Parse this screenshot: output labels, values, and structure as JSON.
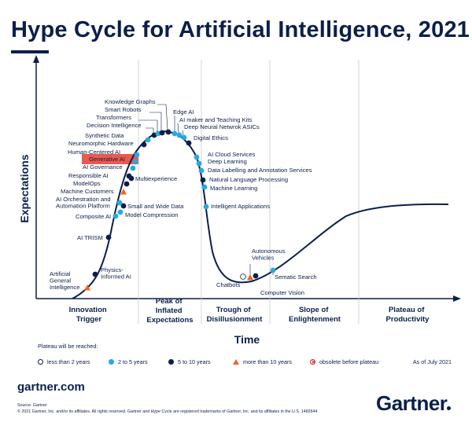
{
  "title": "Hype Cycle for Artificial Intelligence, 2021",
  "axes": {
    "y_label": "Expectations",
    "x_label": "Time"
  },
  "phases": [
    {
      "id": "innovation",
      "lines": [
        "Innovation",
        "Trigger"
      ]
    },
    {
      "id": "peak",
      "lines": [
        "Peak of",
        "Inflated",
        "Expectations"
      ]
    },
    {
      "id": "trough",
      "lines": [
        "Trough of",
        "Disillusionment"
      ]
    },
    {
      "id": "slope",
      "lines": [
        "Slope of",
        "Enlightenment"
      ]
    },
    {
      "id": "plateau",
      "lines": [
        "Plateau of",
        "Productivity"
      ]
    }
  ],
  "technologies": [
    {
      "name": "Artificial General Intelligence",
      "lines": [
        "Artificial",
        "General",
        "Intelligence"
      ],
      "category": "more than 10 years"
    },
    {
      "name": "Physics-Informed AI",
      "lines": [
        "Physics-",
        "Informed AI"
      ],
      "category": "5 to 10 years"
    },
    {
      "name": "AI TRISM",
      "lines": [
        "AI TRISM"
      ],
      "category": "5 to 10 years"
    },
    {
      "name": "Composite AI",
      "lines": [
        "Composite AI"
      ],
      "category": "2 to 5 years"
    },
    {
      "name": "Model Compression",
      "lines": [
        "Model Compression"
      ],
      "category": "2 to 5 years"
    },
    {
      "name": "Small and Wide Data",
      "lines": [
        "Small and Wide Data"
      ],
      "category": "5 to 10 years"
    },
    {
      "name": "AI Orchestration and Automation Platform",
      "lines": [
        "AI Orchestration and",
        "Automation Platform"
      ],
      "category": "2 to 5 years"
    },
    {
      "name": "Machine Customers",
      "lines": [
        "Machine Customers"
      ],
      "category": "more than 10 years"
    },
    {
      "name": "ModelOps",
      "lines": [
        "ModelOps"
      ],
      "category": "5 to 10 years"
    },
    {
      "name": "Multiexperience",
      "lines": [
        "Multiexperience"
      ],
      "category": "5 to 10 years"
    },
    {
      "name": "Responsible AI",
      "lines": [
        "Responsible AI"
      ],
      "category": "5 to 10 years"
    },
    {
      "name": "AI Governance",
      "lines": [
        "AI Governance"
      ],
      "category": "2 to 5 years"
    },
    {
      "name": "Generative AI",
      "lines": [
        "Generative AI"
      ],
      "category": "2 to 5 years"
    },
    {
      "name": "Human-Centered AI",
      "lines": [
        "Human-Centered AI"
      ],
      "category": "2 to 5 years"
    },
    {
      "name": "Neuromorphic Hardware",
      "lines": [
        "Neuromorphic Hardware"
      ],
      "category": "5 to 10 years"
    },
    {
      "name": "Synthetic Data",
      "lines": [
        "Synthetic Data"
      ],
      "category": "2 to 5 years"
    },
    {
      "name": "Decision Intelligence",
      "lines": [
        "Decision Intelligence"
      ],
      "category": "5 to 10 years"
    },
    {
      "name": "Transformers",
      "lines": [
        "Transformers"
      ],
      "category": "2 to 5 years"
    },
    {
      "name": "Smart Robots",
      "lines": [
        "Smart Robots"
      ],
      "category": "5 to 10 years"
    },
    {
      "name": "Knowledge Graphs",
      "lines": [
        "Knowledge Graphs"
      ],
      "category": "5 to 10 years"
    },
    {
      "name": "Edge AI",
      "lines": [
        "Edge AI"
      ],
      "category": "2 to 5 years"
    },
    {
      "name": "AI maker and Teaching Kits",
      "lines": [
        "AI maker and Teaching Kits"
      ],
      "category": "2 to 5 years"
    },
    {
      "name": "Deep Neural Netwrok ASICs",
      "lines": [
        "Deep Neural Netwrok ASICs"
      ],
      "category": "2 to 5 years"
    },
    {
      "name": "Digital Ethics",
      "lines": [
        "Digital Ethics"
      ],
      "category": "5 to 10 years"
    },
    {
      "name": "AI Cloud Services",
      "lines": [
        "AI Cloud Services"
      ],
      "category": "2 to 5 years"
    },
    {
      "name": "Deep Learning",
      "lines": [
        "Deep Learning"
      ],
      "category": "2 to 5 years"
    },
    {
      "name": "Data Labelling and Annotation Services",
      "lines": [
        "Data Labelling and Annotation Services"
      ],
      "category": "2 to 5 years"
    },
    {
      "name": "Natural Language Processing",
      "lines": [
        "Natural Language Processing"
      ],
      "category": "5 to 10 years"
    },
    {
      "name": "Machine Learning",
      "lines": [
        "Machine Learning"
      ],
      "category": "2 to 5 years"
    },
    {
      "name": "Intelligent Applications",
      "lines": [
        "Intelligent Applications"
      ],
      "category": "2 to 5 years"
    },
    {
      "name": "Chatbots",
      "lines": [
        "Chatbots"
      ],
      "category": "less than 2 years"
    },
    {
      "name": "Autonomous Vehicles",
      "lines": [
        "Autonomous",
        "Vehicles"
      ],
      "category": "more than 10 years"
    },
    {
      "name": "Computer Vision",
      "lines": [
        "Computer Vision"
      ],
      "category": "5 to 10 years"
    },
    {
      "name": "Sematic Search",
      "lines": [
        "Sematic Search"
      ],
      "category": "2 to 5 years"
    }
  ],
  "highlight": "Generative AI",
  "legend": {
    "title": "Plateau will be reached:",
    "items": [
      {
        "label": "less than 2 years",
        "symbol": "open-circle"
      },
      {
        "label": "2 to 5 years",
        "symbol": "light-blue-dot",
        "color": "#29a8e0"
      },
      {
        "label": "5 to 10 years",
        "symbol": "dark-blue-dot",
        "color": "#0b1f4b"
      },
      {
        "label": "more than 10 years",
        "symbol": "orange-triangle",
        "color": "#f26522"
      },
      {
        "label": "obsolete before plateau",
        "symbol": "crossed-circle",
        "color": "#d2232a"
      }
    ]
  },
  "as_of": "As of July 2021",
  "website": "gartner.com",
  "source": "Source: Gartner",
  "copyright": "© 2021 Gartner, Inc. and/or its affiliates. All rights reserved. Gartner and Hype Cycle are registered trademarks of Gartner, Inc. and its affiliates in the U.S. 1482644",
  "logo": "Gartner",
  "colors": {
    "navy": "#0b1f4b",
    "light_blue": "#29a8e0",
    "orange": "#f26522",
    "highlight_red": "#e8473e"
  }
}
